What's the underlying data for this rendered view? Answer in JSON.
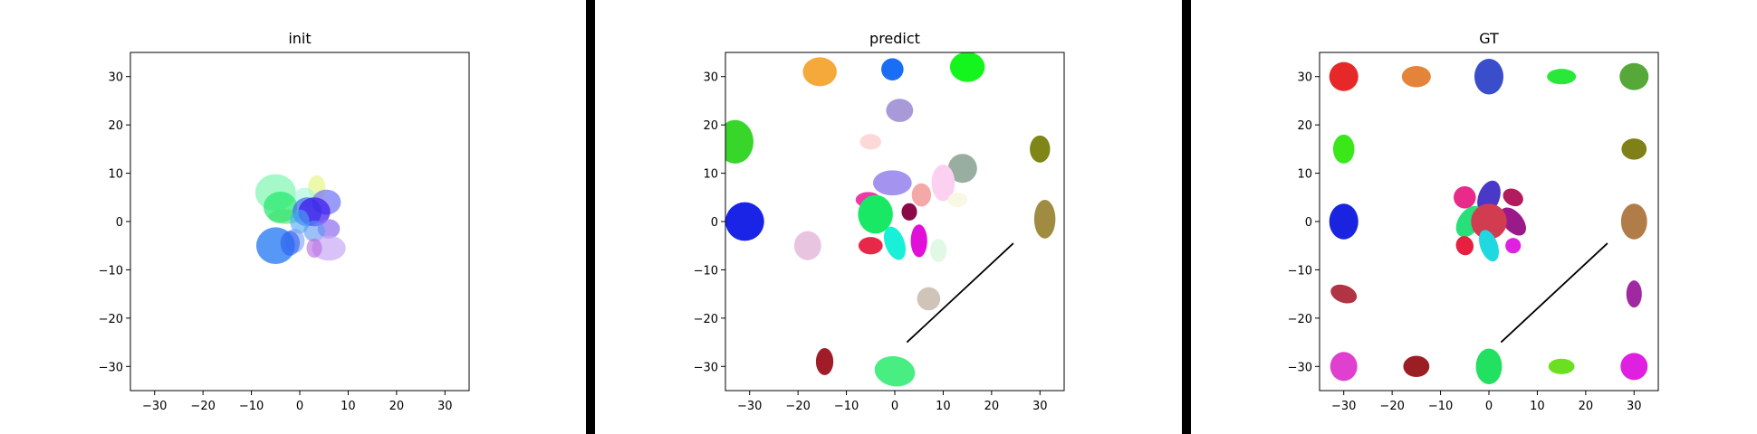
{
  "chart_data": [
    {
      "type": "scatter",
      "title": "init",
      "xlim": [
        -35,
        35
      ],
      "ylim": [
        -35,
        35
      ],
      "xticks": [
        -30,
        -20,
        -10,
        0,
        10,
        20,
        30
      ],
      "yticks": [
        -30,
        -20,
        -10,
        0,
        10,
        20,
        30
      ],
      "grid": false,
      "ellipses": [
        {
          "x": -5,
          "y": 6,
          "rx": 4.2,
          "ry": 3.8,
          "angle": 0,
          "color": "#7ff5b0",
          "opacity": 0.7
        },
        {
          "x": 3.5,
          "y": 7,
          "rx": 1.8,
          "ry": 2.6,
          "angle": 0,
          "color": "#e6f58a",
          "opacity": 0.7
        },
        {
          "x": 1,
          "y": 5,
          "rx": 2.2,
          "ry": 2.0,
          "angle": 0,
          "color": "#a0f5d8",
          "opacity": 0.6
        },
        {
          "x": -4,
          "y": 3,
          "rx": 3.5,
          "ry": 3.2,
          "angle": 0,
          "color": "#22e86a",
          "opacity": 0.7
        },
        {
          "x": -3,
          "y": 1,
          "rx": 3.5,
          "ry": 1.5,
          "angle": 0,
          "color": "#3de070",
          "opacity": 0.6
        },
        {
          "x": 5.5,
          "y": 4,
          "rx": 3.0,
          "ry": 2.6,
          "angle": 0,
          "color": "#6e70f5",
          "opacity": 0.7
        },
        {
          "x": 1.5,
          "y": 2,
          "rx": 3.0,
          "ry": 3.0,
          "angle": 0,
          "color": "#3a6cf0",
          "opacity": 0.7
        },
        {
          "x": 3,
          "y": 2,
          "rx": 3.3,
          "ry": 3.0,
          "angle": 0,
          "color": "#3a12ea",
          "opacity": 0.7
        },
        {
          "x": 0,
          "y": 0,
          "rx": 2.0,
          "ry": 2.5,
          "angle": 0,
          "color": "#4aa8f5",
          "opacity": 0.6
        },
        {
          "x": 6,
          "y": -1.5,
          "rx": 2.3,
          "ry": 2.0,
          "angle": 0,
          "color": "#8c6cf0",
          "opacity": 0.7
        },
        {
          "x": 3,
          "y": -2,
          "rx": 2.2,
          "ry": 2.2,
          "angle": 0,
          "color": "#5a98f0",
          "opacity": 0.6
        },
        {
          "x": 6,
          "y": -5.5,
          "rx": 3.5,
          "ry": 2.6,
          "angle": 0,
          "color": "#c8a8f5",
          "opacity": 0.7
        },
        {
          "x": 3,
          "y": -5.5,
          "rx": 1.6,
          "ry": 2.0,
          "angle": 0,
          "color": "#b868e0",
          "opacity": 0.6
        },
        {
          "x": -1,
          "y": -4,
          "rx": 2.0,
          "ry": 2.5,
          "angle": 0,
          "color": "#7a9af5",
          "opacity": 0.6
        },
        {
          "x": -5,
          "y": -5,
          "rx": 4.0,
          "ry": 3.8,
          "angle": 0,
          "color": "#3a86f5",
          "opacity": 0.85
        },
        {
          "x": -2,
          "y": -4.5,
          "rx": 2.0,
          "ry": 2.6,
          "angle": 0,
          "color": "#2a5ef0",
          "opacity": 0.6
        }
      ],
      "lines": []
    },
    {
      "type": "scatter",
      "title": "predict",
      "xlim": [
        -35,
        35
      ],
      "ylim": [
        -35,
        35
      ],
      "xticks": [
        -30,
        -20,
        -10,
        0,
        10,
        20,
        30
      ],
      "yticks": [
        -30,
        -20,
        -10,
        0,
        10,
        20,
        30
      ],
      "grid": false,
      "ellipses": [
        {
          "x": -15.5,
          "y": 31,
          "rx": 3.5,
          "ry": 3.0,
          "angle": 0,
          "color": "#f5a93a",
          "opacity": 1
        },
        {
          "x": -0.5,
          "y": 31.5,
          "rx": 2.3,
          "ry": 2.3,
          "angle": 0,
          "color": "#1a6ef5",
          "opacity": 1
        },
        {
          "x": 15,
          "y": 32,
          "rx": 3.6,
          "ry": 3.1,
          "angle": 0,
          "color": "#14f51e",
          "opacity": 1
        },
        {
          "x": 1,
          "y": 23,
          "rx": 2.8,
          "ry": 2.4,
          "angle": 0,
          "color": "#a89ad8",
          "opacity": 1
        },
        {
          "x": -5,
          "y": 16.5,
          "rx": 2.2,
          "ry": 1.6,
          "angle": 0,
          "color": "#fcd8d8",
          "opacity": 1
        },
        {
          "x": -33,
          "y": 16.5,
          "rx": 3.8,
          "ry": 4.5,
          "angle": 0,
          "color": "#38d62a",
          "opacity": 1
        },
        {
          "x": 30,
          "y": 15,
          "rx": 2.1,
          "ry": 2.8,
          "angle": 0,
          "color": "#808518",
          "opacity": 1
        },
        {
          "x": 14,
          "y": 11,
          "rx": 3.0,
          "ry": 3.0,
          "angle": 0,
          "color": "#98aea0",
          "opacity": 1
        },
        {
          "x": 10,
          "y": 8,
          "rx": 2.4,
          "ry": 3.8,
          "angle": 0,
          "color": "#fcd0f0",
          "opacity": 1
        },
        {
          "x": -0.5,
          "y": 8,
          "rx": 4.0,
          "ry": 2.6,
          "angle": 0,
          "color": "#a494f0",
          "opacity": 1
        },
        {
          "x": 5.5,
          "y": 5.5,
          "rx": 2.0,
          "ry": 2.4,
          "angle": 0,
          "color": "#f5a8a8",
          "opacity": 1
        },
        {
          "x": 13,
          "y": 4.5,
          "rx": 2.0,
          "ry": 1.5,
          "angle": 0,
          "color": "#f8f8e4",
          "opacity": 1
        },
        {
          "x": -5.5,
          "y": 4.5,
          "rx": 2.6,
          "ry": 1.6,
          "angle": 0,
          "color": "#f038a8",
          "opacity": 1
        },
        {
          "x": -4,
          "y": 1.5,
          "rx": 3.6,
          "ry": 4.0,
          "angle": 0,
          "color": "#18e864",
          "opacity": 1
        },
        {
          "x": 3,
          "y": 2,
          "rx": 1.6,
          "ry": 1.8,
          "angle": 0,
          "color": "#8a0a48",
          "opacity": 1
        },
        {
          "x": -31,
          "y": 0,
          "rx": 4.0,
          "ry": 4.0,
          "angle": 0,
          "color": "#1a24e6",
          "opacity": 1
        },
        {
          "x": 31,
          "y": 0.5,
          "rx": 2.2,
          "ry": 4.0,
          "angle": 0,
          "color": "#a08c40",
          "opacity": 1
        },
        {
          "x": -18,
          "y": -5,
          "rx": 2.8,
          "ry": 3.0,
          "angle": 0,
          "color": "#e8c4e0",
          "opacity": 1
        },
        {
          "x": -5,
          "y": -5,
          "rx": 2.5,
          "ry": 1.8,
          "angle": 0,
          "color": "#e82848",
          "opacity": 1
        },
        {
          "x": 0,
          "y": -4.5,
          "rx": 2.0,
          "ry": 3.6,
          "angle": 20,
          "color": "#18f0d8",
          "opacity": 1
        },
        {
          "x": 5,
          "y": -4,
          "rx": 1.7,
          "ry": 3.4,
          "angle": 0,
          "color": "#e010d8",
          "opacity": 1
        },
        {
          "x": 9,
          "y": -6,
          "rx": 1.7,
          "ry": 2.4,
          "angle": 0,
          "color": "#e0f8e4",
          "opacity": 1
        },
        {
          "x": 7,
          "y": -16,
          "rx": 2.4,
          "ry": 2.4,
          "angle": 0,
          "color": "#d0c4b8",
          "opacity": 1
        },
        {
          "x": -14.5,
          "y": -29,
          "rx": 1.8,
          "ry": 2.8,
          "angle": 0,
          "color": "#a01c28",
          "opacity": 1
        },
        {
          "x": 0,
          "y": -31,
          "rx": 4.2,
          "ry": 3.1,
          "angle": -10,
          "color": "#48ee82",
          "opacity": 1
        }
      ],
      "lines": [
        {
          "x": [
            2.5,
            24.5
          ],
          "y": [
            -25,
            -4.5
          ],
          "color": "#000000"
        }
      ]
    },
    {
      "type": "scatter",
      "title": "GT",
      "xlim": [
        -35,
        35
      ],
      "ylim": [
        -35,
        35
      ],
      "xticks": [
        -30,
        -20,
        -10,
        0,
        10,
        20,
        30
      ],
      "yticks": [
        -30,
        -20,
        -10,
        0,
        10,
        20,
        30
      ],
      "grid": false,
      "ellipses": [
        {
          "x": -30,
          "y": 30,
          "rx": 3.0,
          "ry": 3.0,
          "angle": 0,
          "color": "#e62828",
          "opacity": 1
        },
        {
          "x": -15,
          "y": 30,
          "rx": 3.0,
          "ry": 2.2,
          "angle": 0,
          "color": "#e4843a",
          "opacity": 1
        },
        {
          "x": 0,
          "y": 30,
          "rx": 3.0,
          "ry": 3.7,
          "angle": 0,
          "color": "#3a4ecc",
          "opacity": 1
        },
        {
          "x": 15,
          "y": 30,
          "rx": 3.0,
          "ry": 1.6,
          "angle": 0,
          "color": "#2ae83a",
          "opacity": 1
        },
        {
          "x": 30,
          "y": 30,
          "rx": 3.0,
          "ry": 2.8,
          "angle": 0,
          "color": "#56a838",
          "opacity": 1
        },
        {
          "x": -30,
          "y": 15,
          "rx": 2.2,
          "ry": 3.0,
          "angle": 0,
          "color": "#3ae81a",
          "opacity": 1
        },
        {
          "x": 30,
          "y": 15,
          "rx": 2.6,
          "ry": 2.2,
          "angle": 0,
          "color": "#808018",
          "opacity": 1
        },
        {
          "x": -30,
          "y": 0,
          "rx": 3.0,
          "ry": 3.7,
          "angle": 0,
          "color": "#1a24e0",
          "opacity": 1
        },
        {
          "x": 30,
          "y": 0,
          "rx": 2.7,
          "ry": 3.7,
          "angle": 0,
          "color": "#b07c48",
          "opacity": 1
        },
        {
          "x": -30,
          "y": -15,
          "rx": 2.8,
          "ry": 1.8,
          "angle": -20,
          "color": "#b03444",
          "opacity": 1
        },
        {
          "x": 30,
          "y": -15,
          "rx": 1.6,
          "ry": 2.8,
          "angle": 0,
          "color": "#a028a0",
          "opacity": 1
        },
        {
          "x": -30,
          "y": -30,
          "rx": 2.8,
          "ry": 3.0,
          "angle": 0,
          "color": "#e040d0",
          "opacity": 1
        },
        {
          "x": -15,
          "y": -30,
          "rx": 2.7,
          "ry": 2.2,
          "angle": 0,
          "color": "#9a1e24",
          "opacity": 1
        },
        {
          "x": 0,
          "y": -30,
          "rx": 2.7,
          "ry": 3.7,
          "angle": 0,
          "color": "#22e060",
          "opacity": 1
        },
        {
          "x": 15,
          "y": -30,
          "rx": 2.7,
          "ry": 1.6,
          "angle": 0,
          "color": "#6ae020",
          "opacity": 1
        },
        {
          "x": 30,
          "y": -30,
          "rx": 2.8,
          "ry": 2.8,
          "angle": 0,
          "color": "#e020e0",
          "opacity": 1
        },
        {
          "x": -5,
          "y": 5,
          "rx": 2.3,
          "ry": 2.3,
          "angle": 0,
          "color": "#e82a8a",
          "opacity": 1
        },
        {
          "x": 5,
          "y": 5,
          "rx": 2.2,
          "ry": 1.7,
          "angle": -30,
          "color": "#b01c5c",
          "opacity": 1
        },
        {
          "x": 0,
          "y": 5,
          "rx": 2.2,
          "ry": 3.6,
          "angle": -20,
          "color": "#4a38c8",
          "opacity": 1
        },
        {
          "x": -4,
          "y": 0,
          "rx": 2.3,
          "ry": 3.6,
          "angle": -35,
          "color": "#28e07a",
          "opacity": 1
        },
        {
          "x": 5,
          "y": 0,
          "rx": 2.0,
          "ry": 3.4,
          "angle": 40,
          "color": "#9a1a8a",
          "opacity": 1
        },
        {
          "x": 0,
          "y": 0,
          "rx": 3.7,
          "ry": 3.7,
          "angle": 0,
          "color": "#d23c50",
          "opacity": 1
        },
        {
          "x": -5,
          "y": -5,
          "rx": 1.8,
          "ry": 2.0,
          "angle": 20,
          "color": "#e82040",
          "opacity": 1
        },
        {
          "x": 0,
          "y": -5,
          "rx": 1.8,
          "ry": 3.4,
          "angle": 20,
          "color": "#20d8e0",
          "opacity": 1
        },
        {
          "x": 5,
          "y": -5,
          "rx": 1.6,
          "ry": 1.6,
          "angle": 0,
          "color": "#e020e0",
          "opacity": 1
        }
      ],
      "lines": [
        {
          "x": [
            2.5,
            24.5
          ],
          "y": [
            -25,
            -4.5
          ],
          "color": "#000000"
        }
      ]
    }
  ]
}
